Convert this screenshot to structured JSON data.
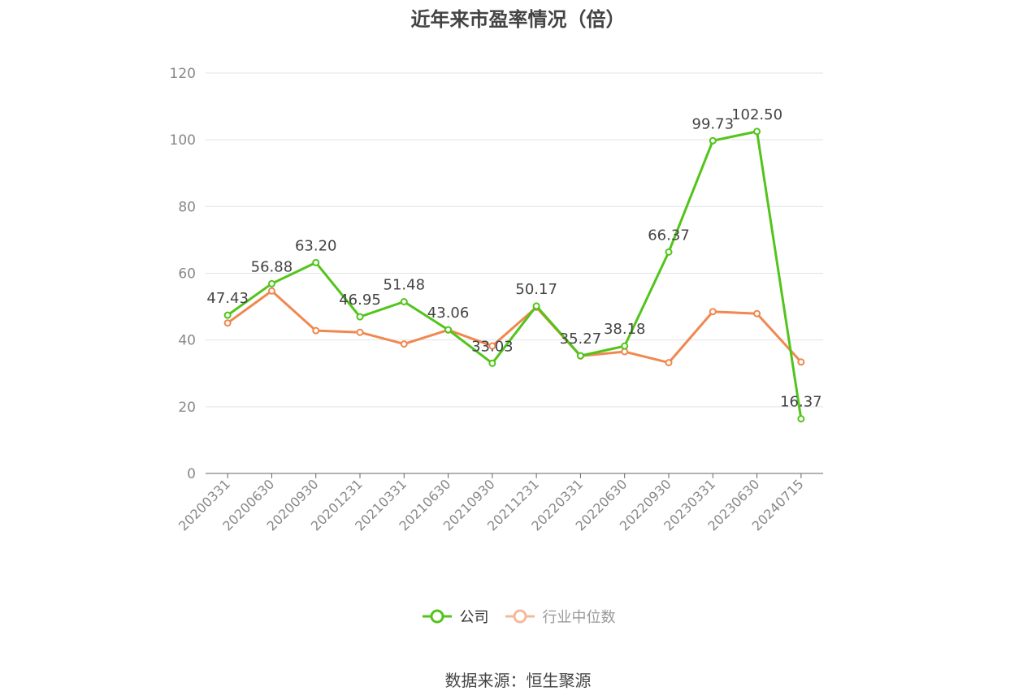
{
  "title": "近年来市盈率情况（倍）",
  "source": "数据来源：恒生聚源",
  "colors": {
    "company": "#52c41a",
    "industry": "#f0884f",
    "industry_legend": "#f7b89a",
    "grid": "#e0e3ea",
    "axis": "#666666",
    "tick": "#888888"
  },
  "legend": {
    "company": "公司",
    "industry": "行业中位数"
  },
  "chart_data": {
    "type": "line",
    "title": "近年来市盈率情况（倍）",
    "categories": [
      "20200331",
      "20200630",
      "20200930",
      "20201231",
      "20210331",
      "20210630",
      "20210930",
      "20211231",
      "20220331",
      "20220630",
      "20220930",
      "20230331",
      "20230630",
      "20240715"
    ],
    "series": [
      {
        "name": "公司",
        "values": [
          47.43,
          56.88,
          63.2,
          46.95,
          51.48,
          43.06,
          33.03,
          50.17,
          35.27,
          38.18,
          66.37,
          99.73,
          102.5,
          16.37
        ],
        "labels": [
          "47.43",
          "56.88",
          "63.20",
          "46.95",
          "51.48",
          "43.06",
          "33.03",
          "50.17",
          "35.27",
          "38.18",
          "66.37",
          "99.73",
          "102.50",
          "16.37"
        ]
      },
      {
        "name": "行业中位数",
        "values": [
          45.1,
          54.7,
          42.8,
          42.3,
          38.8,
          43.0,
          38.2,
          49.8,
          35.2,
          36.5,
          33.2,
          48.5,
          47.9,
          33.4
        ]
      }
    ],
    "yticks": [
      "0",
      "20",
      "40",
      "60",
      "80",
      "100",
      "120"
    ],
    "ylim": [
      0,
      120
    ],
    "grid": true,
    "legend_position": "bottom"
  }
}
